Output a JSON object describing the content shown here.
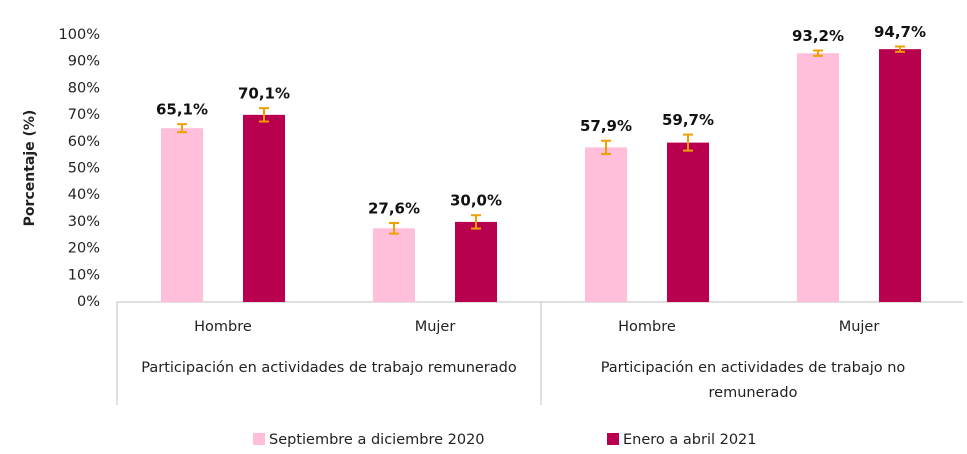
{
  "chart_data": {
    "type": "bar",
    "ylabel": "Porcentaje (%)",
    "categories": [
      "Hombre",
      "Mujer",
      "Hombre",
      "Mujer"
    ],
    "groups": [
      {
        "name": "Participación en actividades de trabajo remunerado",
        "span": 2
      },
      {
        "name": "Participación en actividades de trabajo no remunerado",
        "span": 2
      }
    ],
    "series": [
      {
        "name": "Septiembre a diciembre 2020",
        "color": "#ffbfdb",
        "values": [
          65.1,
          27.6,
          57.9,
          93.2
        ],
        "value_labels": [
          "65,1%",
          "27,6%",
          "57,9%",
          "93,2%"
        ],
        "errors": [
          1.5,
          2,
          2.5,
          1
        ]
      },
      {
        "name": "Enero a abril 2021",
        "color": "#b8004f",
        "values": [
          70.1,
          30.0,
          59.7,
          94.7
        ],
        "value_labels": [
          "70,1%",
          "30,0%",
          "59,7%",
          "94,7%"
        ],
        "errors": [
          2.5,
          2.5,
          3,
          1
        ]
      }
    ],
    "error_color": "#f0a000",
    "ylim": [
      0,
      100
    ],
    "yticks": [
      {
        "value": 0,
        "label": "0%"
      },
      {
        "value": 10,
        "label": "10%"
      },
      {
        "value": 20,
        "label": "20%"
      },
      {
        "value": 30,
        "label": "30%"
      },
      {
        "value": 40,
        "label": "40%"
      },
      {
        "value": 50,
        "label": "50%"
      },
      {
        "value": 60,
        "label": "60%"
      },
      {
        "value": 70,
        "label": "70%"
      },
      {
        "value": 80,
        "label": "80%"
      },
      {
        "value": 90,
        "label": "90%"
      },
      {
        "value": 100,
        "label": "100%"
      }
    ],
    "legend": "bottom"
  }
}
